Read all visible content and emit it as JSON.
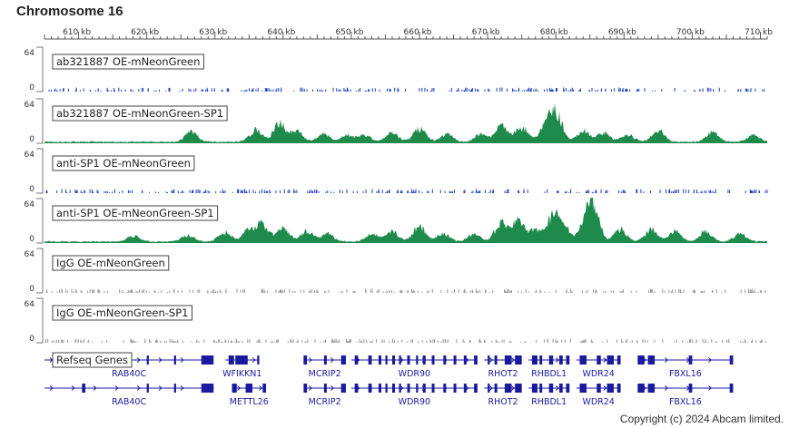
{
  "title": "Chromosome 16",
  "copyright": "Copyright (c) 2024 Abcam limited.",
  "chart_data": {
    "type": "area",
    "title": "Chromosome 16",
    "x_axis": {
      "unit": "kb",
      "range": [
        605,
        711
      ],
      "ticks": [
        {
          "value": 610,
          "label": "610 kb"
        },
        {
          "value": 620,
          "label": "620 kb"
        },
        {
          "value": 630,
          "label": "630 kb"
        },
        {
          "value": 640,
          "label": "640 kb"
        },
        {
          "value": 650,
          "label": "650 kb"
        },
        {
          "value": 660,
          "label": "660 kb"
        },
        {
          "value": 670,
          "label": "670 kb"
        },
        {
          "value": 680,
          "label": "680 kb"
        },
        {
          "value": 690,
          "label": "690 kb"
        },
        {
          "value": 700,
          "label": "700 kb"
        },
        {
          "value": 710,
          "label": "710 kb"
        }
      ]
    },
    "tracks": [
      {
        "name": "ab321887 OE-mNeonGreen",
        "ymin": "0",
        "ymax": "64",
        "color": "#1f3fbf",
        "profile": "noise"
      },
      {
        "name": "ab321887 OE-mNeonGreen-SP1",
        "ymin": "0",
        "ymax": "64",
        "color": "#1e8a4c",
        "profile": "peaks",
        "peaks": [
          {
            "x": 626.5,
            "height": 18
          },
          {
            "x": 636.0,
            "height": 22
          },
          {
            "x": 639.5,
            "height": 32
          },
          {
            "x": 642.0,
            "height": 18
          },
          {
            "x": 646.0,
            "height": 14
          },
          {
            "x": 649.5,
            "height": 12
          },
          {
            "x": 652.0,
            "height": 12
          },
          {
            "x": 656.0,
            "height": 16
          },
          {
            "x": 660.0,
            "height": 24
          },
          {
            "x": 664.0,
            "height": 14
          },
          {
            "x": 669.0,
            "height": 14
          },
          {
            "x": 672.0,
            "height": 28
          },
          {
            "x": 675.0,
            "height": 26
          },
          {
            "x": 678.5,
            "height": 26
          },
          {
            "x": 680.0,
            "height": 50
          },
          {
            "x": 684.0,
            "height": 20
          },
          {
            "x": 687.0,
            "height": 16
          },
          {
            "x": 690.5,
            "height": 14
          },
          {
            "x": 695.0,
            "height": 20
          },
          {
            "x": 703.0,
            "height": 18
          },
          {
            "x": 709.0,
            "height": 12
          }
        ]
      },
      {
        "name": "anti-SP1 OE-mNeonGreen",
        "ymin": "0",
        "ymax": "64",
        "color": "#1f3fbf",
        "profile": "noise"
      },
      {
        "name": "anti-SP1 OE-mNeonGreen-SP1",
        "ymin": "0",
        "ymax": "64",
        "color": "#1e8a4c",
        "profile": "peaks",
        "peaks": [
          {
            "x": 618.0,
            "height": 10
          },
          {
            "x": 626.0,
            "height": 12
          },
          {
            "x": 631.5,
            "height": 16
          },
          {
            "x": 635.0,
            "height": 20
          },
          {
            "x": 637.0,
            "height": 30
          },
          {
            "x": 640.0,
            "height": 24
          },
          {
            "x": 643.5,
            "height": 18
          },
          {
            "x": 646.5,
            "height": 14
          },
          {
            "x": 653.0,
            "height": 14
          },
          {
            "x": 656.0,
            "height": 18
          },
          {
            "x": 660.0,
            "height": 28
          },
          {
            "x": 663.5,
            "height": 14
          },
          {
            "x": 668.0,
            "height": 14
          },
          {
            "x": 672.0,
            "height": 34
          },
          {
            "x": 674.5,
            "height": 36
          },
          {
            "x": 677.0,
            "height": 20
          },
          {
            "x": 679.5,
            "height": 40
          },
          {
            "x": 681.0,
            "height": 30
          },
          {
            "x": 684.5,
            "height": 40
          },
          {
            "x": 685.5,
            "height": 50
          },
          {
            "x": 689.5,
            "height": 22
          },
          {
            "x": 694.0,
            "height": 22
          },
          {
            "x": 697.5,
            "height": 18
          },
          {
            "x": 702.0,
            "height": 18
          },
          {
            "x": 707.0,
            "height": 14
          }
        ]
      },
      {
        "name": "IgG OE-mNeonGreen",
        "ymin": "0",
        "ymax": "64",
        "color": "#9a9a9a",
        "profile": "noise"
      },
      {
        "name": "IgG OE-mNeonGreen-SP1",
        "ymin": "0",
        "ymax": "64",
        "color": "#9a9a9a",
        "profile": "noise"
      }
    ],
    "genes": {
      "track_name": "Refseq Genes",
      "color": "#1a1a9e",
      "rows": [
        [
          {
            "name": "RAB40C",
            "start": 605.0,
            "end": 629.8,
            "exons": [
              [
                610.5,
                611.0
              ],
              [
                620.0,
                620.3
              ],
              [
                624.0,
                624.3
              ],
              [
                628.0,
                629.8
              ]
            ]
          },
          {
            "name": "WFIKKN1",
            "start": 631.5,
            "end": 636.5,
            "exons": [
              [
                632.0,
                632.8
              ],
              [
                633.0,
                634.8
              ],
              [
                636.2,
                636.5
              ]
            ]
          },
          {
            "name": "MCRIP2",
            "start": 643.0,
            "end": 649.2,
            "exons": [
              [
                643.0,
                643.5
              ],
              [
                646.0,
                646.4
              ],
              [
                648.5,
                649.2
              ]
            ]
          },
          {
            "name": "WDR90",
            "start": 650.0,
            "end": 668.5,
            "exons": [
              [
                650.5,
                651.0
              ],
              [
                652.5,
                653.0
              ],
              [
                654.0,
                654.4
              ],
              [
                655.0,
                655.3
              ],
              [
                656.0,
                656.4
              ],
              [
                657.0,
                657.3
              ],
              [
                658.2,
                658.6
              ],
              [
                659.5,
                659.8
              ],
              [
                660.5,
                660.9
              ],
              [
                661.8,
                662.2
              ],
              [
                663.5,
                663.9
              ],
              [
                665.0,
                665.4
              ],
              [
                666.5,
                666.9
              ],
              [
                668.0,
                668.5
              ]
            ]
          },
          {
            "name": "RHOT2",
            "start": 669.5,
            "end": 675.0,
            "exons": [
              [
                670.0,
                670.3
              ],
              [
                671.0,
                671.4
              ],
              [
                672.5,
                673.5
              ],
              [
                674.0,
                675.0
              ]
            ]
          },
          {
            "name": "RHBDL1",
            "start": 676.0,
            "end": 682.0,
            "exons": [
              [
                676.5,
                677.3
              ],
              [
                677.6,
                678.0
              ],
              [
                679.0,
                679.6
              ],
              [
                680.5,
                681.0
              ],
              [
                681.5,
                682.0
              ]
            ]
          },
          {
            "name": "WDR24",
            "start": 683.0,
            "end": 689.5,
            "exons": [
              [
                683.5,
                684.5
              ],
              [
                686.0,
                686.6
              ],
              [
                687.5,
                688.5
              ],
              [
                689.0,
                689.5
              ]
            ]
          },
          {
            "name": "FBXL16",
            "start": 692.0,
            "end": 706.0,
            "exons": [
              [
                692.0,
                693.0
              ],
              [
                693.5,
                694.5
              ],
              [
                699.5,
                700.0
              ],
              [
                705.5,
                706.0
              ]
            ]
          }
        ],
        [
          {
            "name": "RAB40C",
            "start": 605.0,
            "end": 629.8,
            "exons": [
              [
                610.5,
                611.0
              ],
              [
                620.0,
                620.3
              ],
              [
                624.0,
                624.3
              ],
              [
                628.0,
                629.8
              ]
            ]
          },
          {
            "name": "METTL26",
            "start": 632.5,
            "end": 637.5,
            "exons": [
              [
                632.5,
                633.2
              ],
              [
                634.5,
                635.5
              ],
              [
                637.0,
                637.5
              ]
            ]
          },
          {
            "name": "MCRIP2",
            "start": 643.0,
            "end": 649.2,
            "exons": [
              [
                643.0,
                643.5
              ],
              [
                646.0,
                646.4
              ],
              [
                648.5,
                649.2
              ]
            ]
          },
          {
            "name": "WDR90",
            "start": 650.0,
            "end": 668.5,
            "exons": [
              [
                650.5,
                651.0
              ],
              [
                652.5,
                653.0
              ],
              [
                654.0,
                654.4
              ],
              [
                655.0,
                655.3
              ],
              [
                656.0,
                656.4
              ],
              [
                657.0,
                657.3
              ],
              [
                658.2,
                658.6
              ],
              [
                659.5,
                659.8
              ],
              [
                660.5,
                660.9
              ],
              [
                661.8,
                662.2
              ],
              [
                663.5,
                663.9
              ],
              [
                665.0,
                665.4
              ],
              [
                666.5,
                666.9
              ],
              [
                668.0,
                668.5
              ]
            ]
          },
          {
            "name": "RHOT2",
            "start": 669.5,
            "end": 675.0,
            "exons": [
              [
                670.0,
                670.3
              ],
              [
                671.0,
                671.4
              ],
              [
                672.5,
                673.5
              ],
              [
                674.0,
                675.0
              ]
            ]
          },
          {
            "name": "RHBDL1",
            "start": 676.0,
            "end": 682.0,
            "exons": [
              [
                676.5,
                677.3
              ],
              [
                677.6,
                678.0
              ],
              [
                679.0,
                679.6
              ],
              [
                680.5,
                681.0
              ],
              [
                681.5,
                682.0
              ]
            ]
          },
          {
            "name": "WDR24",
            "start": 683.0,
            "end": 689.5,
            "exons": [
              [
                683.5,
                684.5
              ],
              [
                686.0,
                686.6
              ],
              [
                687.5,
                688.5
              ],
              [
                689.0,
                689.5
              ]
            ]
          },
          {
            "name": "FBXL16",
            "start": 692.0,
            "end": 706.0,
            "exons": [
              [
                692.0,
                693.0
              ],
              [
                693.5,
                694.5
              ],
              [
                699.5,
                700.0
              ],
              [
                705.5,
                706.0
              ]
            ]
          }
        ]
      ]
    }
  }
}
